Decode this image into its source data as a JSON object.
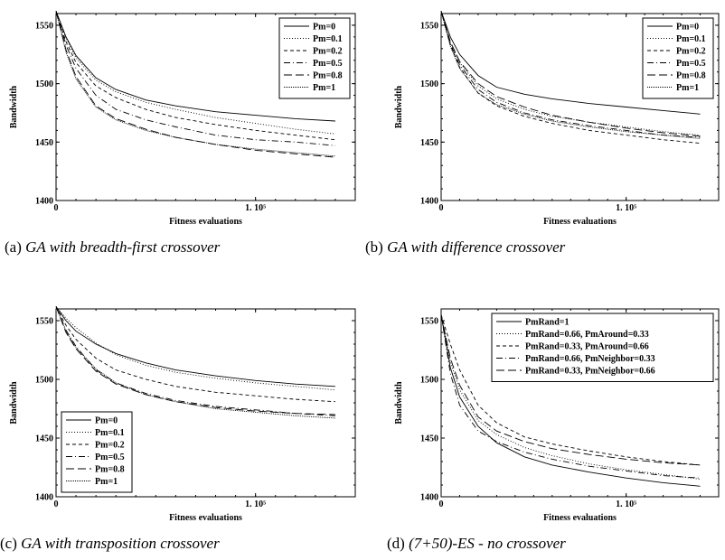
{
  "charts": [
    {
      "id": "a",
      "caption_prefix": "(a)",
      "caption_text": "GA with breadth-first crossover",
      "chart_data": {
        "type": "line",
        "xlabel": "Fitness evaluations",
        "ylabel": "Bandwidth",
        "xlim": [
          0,
          150000
        ],
        "ylim": [
          1400,
          1560
        ],
        "x_ticks": [
          {
            "value": 0,
            "label": "0"
          },
          {
            "value": 100000,
            "label": "1. 10⁵"
          }
        ],
        "y_ticks": [
          {
            "value": 1400,
            "label": "1400"
          },
          {
            "value": 1450,
            "label": "1450"
          },
          {
            "value": 1500,
            "label": "1500"
          },
          {
            "value": 1550,
            "label": "1550"
          }
        ],
        "legend_position": "top-right",
        "x": [
          0,
          5000,
          10000,
          20000,
          30000,
          45000,
          60000,
          80000,
          100000,
          120000,
          140000
        ],
        "series": [
          {
            "name": "Pm=0",
            "style": "solid",
            "values": [
              1562,
              1540,
              1524,
              1505,
              1495,
              1486,
              1481,
              1476,
              1473,
              1470,
              1468
            ]
          },
          {
            "name": "Pm=0.1",
            "style": "dotted",
            "values": [
              1562,
              1539,
              1522,
              1503,
              1493,
              1484,
              1478,
              1471,
              1466,
              1461,
              1457
            ]
          },
          {
            "name": "Pm=0.2",
            "style": "dashed",
            "values": [
              1562,
              1536,
              1518,
              1498,
              1488,
              1478,
              1471,
              1465,
              1460,
              1456,
              1452
            ]
          },
          {
            "name": "Pm=0.5",
            "style": "dashdot",
            "values": [
              1562,
              1533,
              1513,
              1490,
              1478,
              1469,
              1463,
              1456,
              1452,
              1450,
              1447
            ]
          },
          {
            "name": "Pm=0.8",
            "style": "longdash",
            "values": [
              1562,
              1529,
              1506,
              1481,
              1470,
              1461,
              1454,
              1448,
              1443,
              1440,
              1437
            ]
          },
          {
            "name": "Pm=1",
            "style": "fine",
            "values": [
              1562,
              1527,
              1504,
              1480,
              1469,
              1460,
              1454,
              1448,
              1444,
              1441,
              1438
            ]
          }
        ]
      }
    },
    {
      "id": "b",
      "caption_prefix": "(b)",
      "caption_text": "GA with difference crossover",
      "chart_data": {
        "type": "line",
        "xlabel": "Fitness evaluations",
        "ylabel": "Bandwidth",
        "xlim": [
          0,
          150000
        ],
        "ylim": [
          1400,
          1560
        ],
        "x_ticks": [
          {
            "value": 0,
            "label": "0"
          },
          {
            "value": 100000,
            "label": "1. 10⁵"
          }
        ],
        "y_ticks": [
          {
            "value": 1400,
            "label": "1400"
          },
          {
            "value": 1450,
            "label": "1450"
          },
          {
            "value": 1500,
            "label": "1500"
          },
          {
            "value": 1550,
            "label": "1550"
          }
        ],
        "legend_position": "top-right",
        "x": [
          0,
          5000,
          10000,
          20000,
          30000,
          45000,
          60000,
          80000,
          100000,
          120000,
          140000
        ],
        "series": [
          {
            "name": "Pm=0",
            "style": "solid",
            "values": [
              1562,
              1540,
              1525,
              1507,
              1497,
              1491,
              1487,
              1483,
              1480,
              1477,
              1474
            ]
          },
          {
            "name": "Pm=0.1",
            "style": "dotted",
            "values": [
              1562,
              1535,
              1518,
              1498,
              1487,
              1478,
              1472,
              1467,
              1463,
              1459,
              1456
            ]
          },
          {
            "name": "Pm=0.2",
            "style": "dashed",
            "values": [
              1562,
              1533,
              1514,
              1492,
              1481,
              1472,
              1466,
              1460,
              1456,
              1452,
              1449
            ]
          },
          {
            "name": "Pm=0.5",
            "style": "dashdot",
            "values": [
              1562,
              1534,
              1516,
              1495,
              1484,
              1475,
              1469,
              1464,
              1460,
              1456,
              1454
            ]
          },
          {
            "name": "Pm=0.8",
            "style": "longdash",
            "values": [
              1562,
              1536,
              1519,
              1500,
              1489,
              1480,
              1473,
              1467,
              1462,
              1458,
              1455
            ]
          },
          {
            "name": "Pm=1",
            "style": "fine",
            "values": [
              1562,
              1532,
              1513,
              1492,
              1482,
              1474,
              1468,
              1463,
              1459,
              1456,
              1453
            ]
          }
        ]
      }
    },
    {
      "id": "c",
      "caption_prefix": "(c)",
      "caption_text": "GA with transposition crossover",
      "chart_data": {
        "type": "line",
        "xlabel": "Fitness evaluations",
        "ylabel": "Bandwidth",
        "xlim": [
          0,
          150000
        ],
        "ylim": [
          1400,
          1560
        ],
        "x_ticks": [
          {
            "value": 0,
            "label": "0"
          },
          {
            "value": 100000,
            "label": "1. 10⁵"
          }
        ],
        "y_ticks": [
          {
            "value": 1400,
            "label": "1400"
          },
          {
            "value": 1450,
            "label": "1450"
          },
          {
            "value": 1500,
            "label": "1500"
          },
          {
            "value": 1550,
            "label": "1550"
          }
        ],
        "legend_position": "bottom-left",
        "x": [
          0,
          5000,
          10000,
          20000,
          30000,
          45000,
          60000,
          80000,
          100000,
          120000,
          140000
        ],
        "series": [
          {
            "name": "Pm=0",
            "style": "solid",
            "values": [
              1562,
              1550,
              1541,
              1530,
              1522,
              1514,
              1508,
              1503,
              1499,
              1496,
              1494
            ]
          },
          {
            "name": "Pm=0.1",
            "style": "dotted",
            "values": [
              1562,
              1552,
              1544,
              1531,
              1521,
              1512,
              1506,
              1501,
              1497,
              1494,
              1491
            ]
          },
          {
            "name": "Pm=0.2",
            "style": "dashed",
            "values": [
              1562,
              1546,
              1534,
              1518,
              1508,
              1500,
              1494,
              1489,
              1486,
              1483,
              1481
            ]
          },
          {
            "name": "Pm=0.5",
            "style": "dashdot",
            "values": [
              1562,
              1542,
              1528,
              1508,
              1497,
              1488,
              1482,
              1477,
              1474,
              1471,
              1469
            ]
          },
          {
            "name": "Pm=0.8",
            "style": "longdash",
            "values": [
              1562,
              1540,
              1526,
              1507,
              1496,
              1487,
              1481,
              1476,
              1473,
              1471,
              1470
            ]
          },
          {
            "name": "Pm=1",
            "style": "fine",
            "values": [
              1562,
              1541,
              1527,
              1509,
              1497,
              1487,
              1481,
              1475,
              1472,
              1469,
              1467
            ]
          }
        ]
      }
    },
    {
      "id": "d",
      "caption_prefix": "(d)",
      "caption_text": "(7+50)-ES - no crossover",
      "chart_data": {
        "type": "line",
        "xlabel": "Fitness evaluations",
        "ylabel": "Bandwidth",
        "xlim": [
          0,
          150000
        ],
        "ylim": [
          1400,
          1560
        ],
        "x_ticks": [
          {
            "value": 0,
            "label": "0"
          },
          {
            "value": 100000,
            "label": "1. 10⁵"
          }
        ],
        "y_ticks": [
          {
            "value": 1400,
            "label": "1400"
          },
          {
            "value": 1450,
            "label": "1450"
          },
          {
            "value": 1500,
            "label": "1500"
          },
          {
            "value": 1550,
            "label": "1550"
          }
        ],
        "legend_position": "top-right",
        "x": [
          0,
          5000,
          10000,
          20000,
          30000,
          45000,
          60000,
          80000,
          100000,
          120000,
          140000
        ],
        "series": [
          {
            "name": "PmRand=1",
            "style": "solid",
            "values": [
              1555,
              1510,
              1485,
              1460,
              1446,
              1434,
              1427,
              1421,
              1416,
              1412,
              1409
            ]
          },
          {
            "name": "PmRand=0.66, PmAround=0.33",
            "style": "dotted",
            "values": [
              1555,
              1515,
              1491,
              1465,
              1453,
              1442,
              1435,
              1428,
              1423,
              1419,
              1415
            ]
          },
          {
            "name": "PmRand=0.33, PmAround=0.66",
            "style": "dashed",
            "values": [
              1555,
              1530,
              1508,
              1478,
              1463,
              1451,
              1445,
              1439,
              1434,
              1430,
              1427
            ]
          },
          {
            "name": "PmRand=0.66, PmNeighbor=0.33",
            "style": "dashdot",
            "values": [
              1555,
              1505,
              1478,
              1456,
              1447,
              1438,
              1432,
              1426,
              1422,
              1418,
              1416
            ]
          },
          {
            "name": "PmRand=0.33, PmNeighbor=0.66",
            "style": "longdash",
            "values": [
              1555,
              1518,
              1495,
              1468,
              1456,
              1447,
              1441,
              1436,
              1432,
              1429,
              1427
            ]
          }
        ]
      }
    }
  ]
}
